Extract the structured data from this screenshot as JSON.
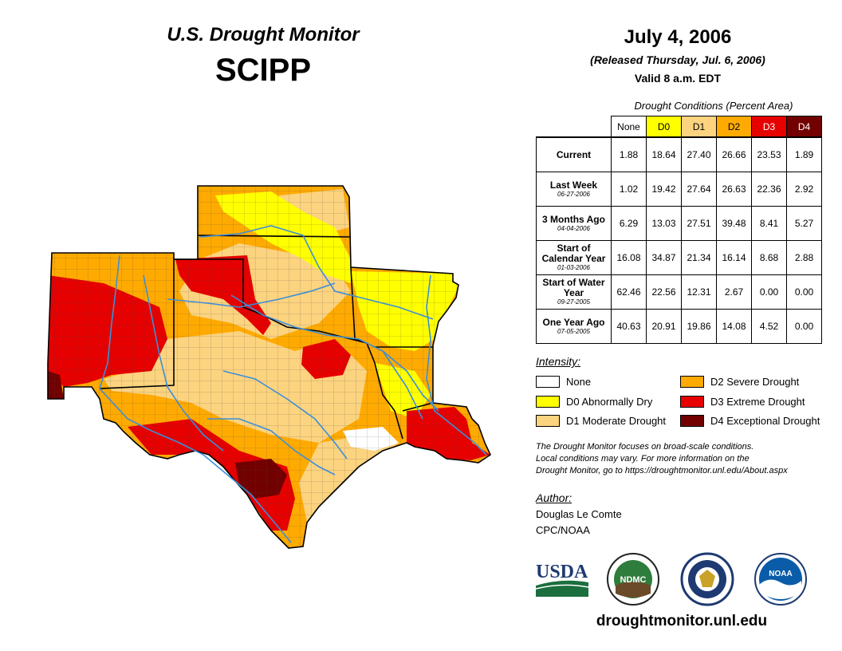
{
  "header": {
    "title": "U.S. Drought Monitor",
    "region": "SCIPP",
    "date": "July 4, 2006",
    "released": "(Released Thursday, Jul. 6, 2006)",
    "valid": "Valid 8 a.m. EDT"
  },
  "table": {
    "caption": "Drought Conditions (Percent Area)",
    "columns": [
      "None",
      "D0",
      "D1",
      "D2",
      "D3",
      "D4"
    ],
    "column_colors": [
      "#ffffff",
      "#ffff00",
      "#fcd37f",
      "#ffaa00",
      "#e60000",
      "#730000"
    ],
    "rows": [
      {
        "label": "Current",
        "date": "",
        "values": [
          "1.88",
          "18.64",
          "27.40",
          "26.66",
          "23.53",
          "1.89"
        ]
      },
      {
        "label": "Last Week",
        "date": "06-27-2006",
        "values": [
          "1.02",
          "19.42",
          "27.64",
          "26.63",
          "22.36",
          "2.92"
        ]
      },
      {
        "label": "3 Months Ago",
        "date": "04-04-2006",
        "values": [
          "6.29",
          "13.03",
          "27.51",
          "39.48",
          "8.41",
          "5.27"
        ]
      },
      {
        "label": "Start of Calendar Year",
        "date": "01-03-2006",
        "values": [
          "16.08",
          "34.87",
          "21.34",
          "16.14",
          "8.68",
          "2.88"
        ]
      },
      {
        "label": "Start of Water Year",
        "date": "09-27-2005",
        "values": [
          "62.46",
          "22.56",
          "12.31",
          "2.67",
          "0.00",
          "0.00"
        ]
      },
      {
        "label": "One Year Ago",
        "date": "07-05-2005",
        "values": [
          "40.63",
          "20.91",
          "19.86",
          "14.08",
          "4.52",
          "0.00"
        ]
      }
    ]
  },
  "legend": {
    "title": "Intensity:",
    "items": [
      {
        "label": "None",
        "color": "#ffffff"
      },
      {
        "label": "D0 Abnormally Dry",
        "color": "#ffff00"
      },
      {
        "label": "D1 Moderate Drought",
        "color": "#fcd37f"
      },
      {
        "label": "D2 Severe Drought",
        "color": "#ffaa00"
      },
      {
        "label": "D3 Extreme Drought",
        "color": "#e60000"
      },
      {
        "label": "D4 Exceptional Drought",
        "color": "#730000"
      }
    ]
  },
  "footnote": {
    "line1": "The Drought Monitor focuses on broad-scale conditions.",
    "line2": "Local conditions may vary. For more information on the",
    "line3": "Drought Monitor, go to https://droughtmonitor.unl.edu/About.aspx"
  },
  "author": {
    "title": "Author:",
    "name": "Douglas Le Comte",
    "org": "CPC/NOAA"
  },
  "logos": {
    "usda": "USDA",
    "ndmc": "NDMC",
    "noaa": "NOAA"
  },
  "website": "droughtmonitor.unl.edu",
  "colors": {
    "river": "#3c8fd9",
    "border": "#000000",
    "county": "#555555"
  }
}
